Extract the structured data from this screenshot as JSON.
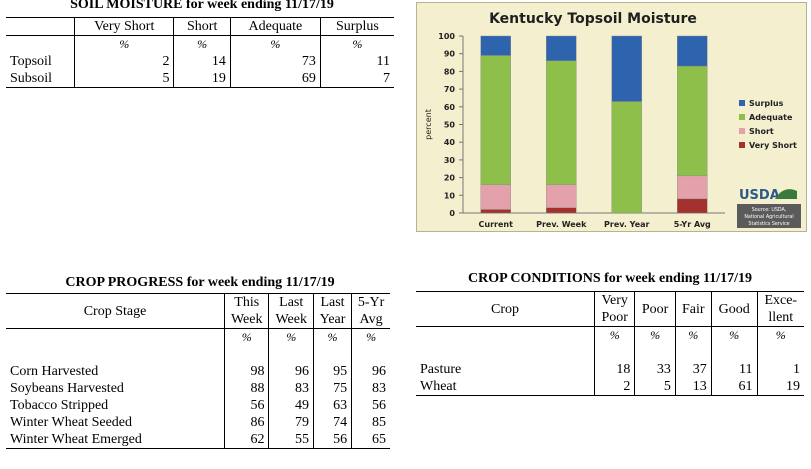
{
  "soil_moisture": {
    "title": "SOIL MOISTURE for week ending 11/17/19",
    "columns": [
      "Very Short",
      "Short",
      "Adequate",
      "Surplus"
    ],
    "units": [
      "%",
      "%",
      "%",
      "%"
    ],
    "rows": [
      {
        "label": "Topsoil",
        "values": [
          "2",
          "14",
          "73",
          "11"
        ]
      },
      {
        "label": "Subsoil",
        "values": [
          "5",
          "19",
          "69",
          "7"
        ]
      }
    ]
  },
  "crop_progress": {
    "title": "CROP PROGRESS for week ending 11/17/19",
    "stage_header": "Crop Stage",
    "columns": [
      [
        "This",
        "Week"
      ],
      [
        "Last",
        "Week"
      ],
      [
        "Last",
        "Year"
      ],
      [
        "5-Yr",
        "Avg"
      ]
    ],
    "units": [
      "%",
      "%",
      "%",
      "%"
    ],
    "rows": [
      {
        "label": "Corn Harvested",
        "values": [
          "98",
          "96",
          "95",
          "96"
        ]
      },
      {
        "label": "Soybeans Harvested",
        "values": [
          "88",
          "83",
          "75",
          "83"
        ]
      },
      {
        "label": "Tobacco Stripped",
        "values": [
          "56",
          "49",
          "63",
          "56"
        ]
      },
      {
        "label": "Winter Wheat Seeded",
        "values": [
          "86",
          "79",
          "74",
          "85"
        ]
      },
      {
        "label": "Winter Wheat Emerged",
        "values": [
          "62",
          "55",
          "56",
          "65"
        ]
      }
    ]
  },
  "crop_conditions": {
    "title": "CROP CONDITIONS for week ending 11/17/19",
    "crop_header": "Crop",
    "columns": [
      [
        "Very",
        "Poor"
      ],
      [
        "Poor",
        ""
      ],
      [
        "Fair",
        ""
      ],
      [
        "Good",
        ""
      ],
      [
        "Exce-",
        "llent"
      ]
    ],
    "units": [
      "%",
      "%",
      "%",
      "%",
      "%"
    ],
    "rows": [
      {
        "label": "Pasture",
        "values": [
          "18",
          "33",
          "37",
          "11",
          "1"
        ]
      },
      {
        "label": "Wheat",
        "values": [
          "2",
          "5",
          "13",
          "61",
          "19"
        ]
      }
    ]
  },
  "chart_data": {
    "type": "bar",
    "stacked": true,
    "title": "Kentucky Topsoil Moisture",
    "ylabel": "percent",
    "xlabel": "",
    "ylim": [
      0,
      100
    ],
    "yticks": [
      0,
      10,
      20,
      30,
      40,
      50,
      60,
      70,
      80,
      90,
      100
    ],
    "grid": false,
    "legend_position": "right",
    "categories": [
      "Current",
      "Prev. Week",
      "Prev. Year",
      "5-Yr Avg"
    ],
    "series": [
      {
        "name": "Very Short",
        "color": "#a4312e",
        "values": [
          2,
          3,
          0,
          8
        ]
      },
      {
        "name": "Short",
        "color": "#e3a2ab",
        "values": [
          14,
          13,
          0,
          13
        ]
      },
      {
        "name": "Adequate",
        "color": "#8dbf4a",
        "values": [
          73,
          70,
          63,
          62
        ]
      },
      {
        "name": "Surplus",
        "color": "#2e63ad",
        "values": [
          11,
          14,
          37,
          17
        ]
      }
    ],
    "legend_order": [
      "Surplus",
      "Adequate",
      "Short",
      "Very Short"
    ],
    "logo_text": "USDA",
    "source_note": [
      "Source: USDA,",
      "National Agricultural",
      "Statistics Service"
    ]
  }
}
